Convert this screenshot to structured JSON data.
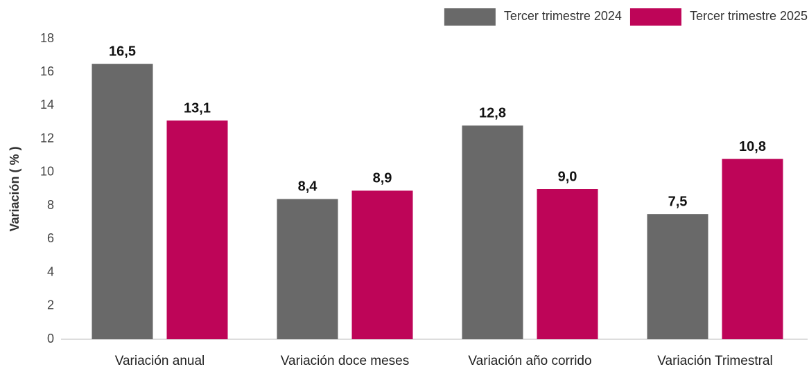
{
  "chart_data": {
    "type": "bar",
    "y_label": "Variación ( % )",
    "categories": [
      "Variación anual",
      "Variación doce meses",
      "Variación año corrido",
      "Variación Trimestral"
    ],
    "series": [
      {
        "name": "Tercer trimestre 2024",
        "color": "#696969",
        "values": [
          16.5,
          8.4,
          12.8,
          7.5
        ],
        "value_labels": [
          "16,5",
          "8,4",
          "12,8",
          "7,5"
        ]
      },
      {
        "name": "Tercer trimestre 2025",
        "color": "#be0558",
        "values": [
          13.1,
          8.9,
          9.0,
          10.8
        ],
        "value_labels": [
          "13,1",
          "8,9",
          "9,0",
          "10,8"
        ]
      }
    ],
    "ylim": [
      0,
      18
    ],
    "yticks": [
      0,
      2,
      4,
      6,
      8,
      10,
      12,
      14,
      16,
      18
    ],
    "grid": false,
    "legend": "top-right"
  }
}
